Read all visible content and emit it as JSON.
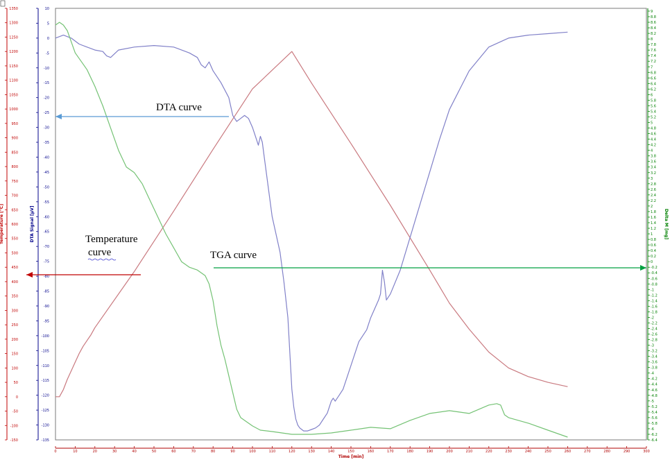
{
  "chart_data": {
    "type": "line",
    "x_axis": {
      "label": "Time [min]",
      "range": [
        0,
        300
      ],
      "ticks": [
        0,
        10,
        20,
        30,
        40,
        50,
        60,
        70,
        80,
        90,
        100,
        110,
        120,
        130,
        140,
        150,
        160,
        170,
        180,
        190,
        200,
        210,
        220,
        230,
        240,
        250,
        260,
        270,
        280,
        290,
        300
      ],
      "color": "#b00000"
    },
    "y_axes": [
      {
        "id": "temperature",
        "label": "Temperature [°C]",
        "side": "left-outer",
        "color": "#c00000",
        "range": [
          -150,
          1350
        ],
        "ticks": [
          -150,
          -100,
          -50,
          0,
          50,
          100,
          150,
          200,
          250,
          300,
          350,
          400,
          450,
          500,
          550,
          600,
          650,
          700,
          750,
          800,
          850,
          900,
          950,
          1000,
          1050,
          1100,
          1150,
          1200,
          1250,
          1300,
          1350
        ]
      },
      {
        "id": "dta",
        "label": "DTA Signal [µV]",
        "side": "left-inner",
        "color": "#00008b",
        "range": [
          -135,
          10
        ],
        "ticks": [
          -135,
          -130,
          -125,
          -120,
          -115,
          -110,
          -105,
          -100,
          -95,
          -90,
          -85,
          -80,
          -75,
          -70,
          -65,
          -60,
          -55,
          -50,
          -45,
          -40,
          -35,
          -30,
          -25,
          -20,
          -15,
          -10,
          -5,
          0,
          5,
          10
        ]
      },
      {
        "id": "tga",
        "label": "Delta M [mg]",
        "side": "right",
        "color": "#008000",
        "range": [
          -6.4,
          9.1
        ],
        "ticks": [
          -6.4,
          -6.2,
          -6.0,
          -5.8,
          -5.6,
          -5.4,
          -5.2,
          -5.0,
          -4.8,
          -4.6,
          -4.4,
          -4.2,
          -4.0,
          -3.8,
          -3.6,
          -3.4,
          -3.2,
          -3.0,
          -2.8,
          -2.6,
          -2.4,
          -2.2,
          -2.0,
          -1.8,
          -1.6,
          -1.4,
          -1.2,
          -1.0,
          -0.8,
          -0.6,
          -0.4,
          -0.2,
          0.0,
          0.2,
          0.4,
          0.6,
          0.8,
          1.0,
          1.2,
          1.4,
          1.6,
          1.8,
          2.0,
          2.2,
          2.4,
          2.6,
          2.8,
          3.0,
          3.2,
          3.4,
          3.6,
          3.8,
          4.0,
          4.2,
          4.4,
          4.6,
          4.8,
          5.0,
          5.2,
          5.4,
          5.6,
          5.8,
          6.0,
          6.2,
          6.4,
          6.6,
          6.8,
          7.0,
          7.2,
          7.4,
          7.6,
          7.8,
          8.0,
          8.2,
          8.4,
          8.6,
          8.8,
          9.0
        ]
      }
    ],
    "series": [
      {
        "axis": "temperature",
        "color": "#c9797f",
        "x": [
          0,
          2,
          4,
          6,
          8,
          10,
          12,
          14,
          16,
          18,
          20,
          40,
          60,
          80,
          100,
          120,
          130,
          150,
          170,
          190,
          200,
          210,
          220,
          230,
          240,
          250,
          260
        ],
        "y": [
          0,
          0,
          25,
          60,
          90,
          120,
          150,
          175,
          195,
          215,
          240,
          435,
          645,
          860,
          1070,
          1200,
          1090,
          880,
          665,
          440,
          325,
          235,
          155,
          100,
          70,
          50,
          35
        ]
      },
      {
        "axis": "dta",
        "color": "#8080c8",
        "x": [
          0,
          4,
          8,
          12,
          16,
          20,
          24,
          26,
          28,
          32,
          40,
          50,
          60,
          68,
          72,
          74,
          76,
          78,
          80,
          84,
          88,
          90,
          92,
          94,
          96,
          98,
          100,
          102,
          103,
          104,
          105,
          106,
          108,
          110,
          112,
          114,
          116,
          118,
          120,
          121,
          122,
          123,
          124,
          125,
          126,
          128,
          130,
          132,
          134,
          136,
          138,
          140,
          141,
          142,
          144,
          146,
          148,
          150,
          152,
          154,
          156,
          158,
          160,
          162,
          164,
          165,
          166,
          167,
          168,
          170,
          175,
          180,
          185,
          190,
          195,
          200,
          210,
          220,
          230,
          240,
          250,
          260
        ],
        "y": [
          0,
          1,
          0,
          -2,
          -3,
          -4,
          -4.5,
          -6,
          -6.5,
          -4,
          -3,
          -2.5,
          -3,
          -5,
          -6.5,
          -9,
          -10,
          -8,
          -11,
          -15,
          -20,
          -26,
          -28,
          -27,
          -26,
          -27,
          -30,
          -34,
          -36,
          -33,
          -35,
          -40,
          -50,
          -60,
          -66,
          -72,
          -82,
          -94,
          -118,
          -124,
          -128,
          -130,
          -131,
          -131.5,
          -132,
          -132,
          -131.5,
          -131,
          -130,
          -128,
          -126,
          -122,
          -121,
          -122,
          -120,
          -118,
          -114,
          -110,
          -106,
          -102,
          -100,
          -98,
          -94,
          -91,
          -88,
          -86,
          -78,
          -82,
          -88,
          -86,
          -78,
          -67,
          -56,
          -45,
          -34,
          -24,
          -11,
          -3,
          0,
          1,
          1.5,
          2
        ]
      },
      {
        "axis": "tga",
        "color": "#74c274",
        "x": [
          0,
          2,
          4,
          6,
          8,
          10,
          14,
          16,
          20,
          24,
          28,
          32,
          36,
          40,
          44,
          48,
          52,
          56,
          60,
          64,
          68,
          72,
          76,
          78,
          80,
          82,
          84,
          86,
          88,
          90,
          92,
          94,
          96,
          98,
          100,
          104,
          110,
          120,
          130,
          140,
          150,
          160,
          170,
          180,
          190,
          200,
          210,
          220,
          224,
          226,
          228,
          230,
          240,
          250,
          256,
          260
        ],
        "y": [
          8.5,
          8.6,
          8.5,
          8.3,
          7.9,
          7.5,
          7.1,
          6.9,
          6.3,
          5.6,
          4.8,
          4.0,
          3.4,
          3.2,
          2.8,
          2.2,
          1.6,
          1.0,
          0.5,
          0.0,
          -0.2,
          -0.3,
          -0.5,
          -0.8,
          -1.4,
          -2.3,
          -3.0,
          -3.5,
          -4.1,
          -4.7,
          -5.3,
          -5.6,
          -5.7,
          -5.8,
          -5.9,
          -6.05,
          -6.1,
          -6.2,
          -6.2,
          -6.15,
          -6.05,
          -5.95,
          -6.0,
          -5.7,
          -5.45,
          -5.35,
          -5.45,
          -5.15,
          -5.1,
          -5.15,
          -5.5,
          -5.6,
          -5.8,
          -6.05,
          -6.2,
          -6.3
        ]
      }
    ],
    "annotations": [
      {
        "text": "DTA curve",
        "target_axis": "dta",
        "arrow_color": "#5a9bd5"
      },
      {
        "text": "Temperature\ncurve",
        "target_axis": "temperature",
        "arrow_color": "#c00000"
      },
      {
        "text": "TGA curve",
        "target_axis": "tga",
        "arrow_color": "#00a040"
      }
    ],
    "grid": false
  }
}
